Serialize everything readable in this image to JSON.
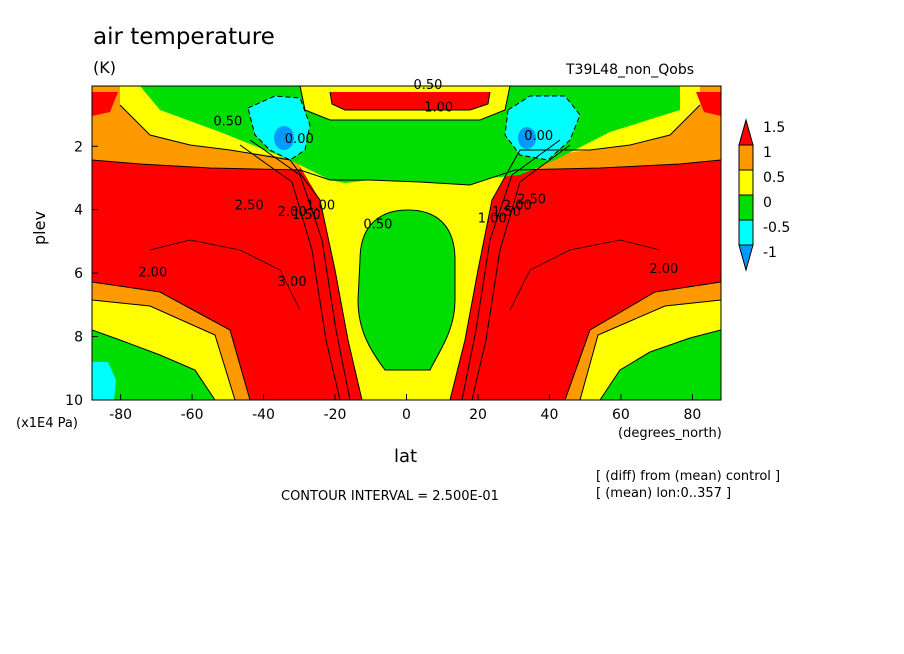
{
  "header": {
    "title": "air temperature",
    "units": "(K)",
    "run": "T39L48_non_Qobs"
  },
  "footer": {
    "contour_interval": "CONTOUR INTERVAL = 2.500E-01",
    "note_diff": "[ (diff) from (mean) control ]",
    "note_mean": "[ (mean) lon:0..357 ]"
  },
  "chart_data": {
    "type": "contour",
    "xlabel": "lat",
    "xunit": "(degrees_north)",
    "ylabel": "plev",
    "yunit": "(x1E4 Pa)",
    "xlim": [
      -88,
      88
    ],
    "ylim": [
      10,
      0.1
    ],
    "x_ticks": [
      -80,
      -60,
      -40,
      -20,
      0,
      20,
      40,
      60,
      80
    ],
    "y_ticks": [
      2,
      4,
      6,
      8,
      10
    ],
    "legend": {
      "placement": "right",
      "levels": [
        1.5,
        1,
        0.5,
        0,
        -0.5,
        -1
      ],
      "colors": [
        "#ff0000",
        "#ff9900",
        "#ffff00",
        "#00dd00",
        "#00ffff",
        "#0099ff"
      ]
    },
    "contour_labels": [
      {
        "text": "0.50",
        "lat": 6,
        "plev": 0.2
      },
      {
        "text": "1.00",
        "lat": 9,
        "plev": 0.9
      },
      {
        "text": "0.50",
        "lat": -50,
        "plev": 1.35
      },
      {
        "text": "0.00",
        "lat": -30,
        "plev": 1.9
      },
      {
        "text": "0.00",
        "lat": 37,
        "plev": 1.8
      },
      {
        "text": "2.50",
        "lat": -44,
        "plev": 4.0
      },
      {
        "text": "2.00",
        "lat": -32,
        "plev": 4.2
      },
      {
        "text": "1.50",
        "lat": -28,
        "plev": 4.3
      },
      {
        "text": "1.00",
        "lat": -24,
        "plev": 4.0
      },
      {
        "text": "0.50",
        "lat": -8,
        "plev": 4.6
      },
      {
        "text": "1.00",
        "lat": 24,
        "plev": 4.4
      },
      {
        "text": "1.50",
        "lat": 28,
        "plev": 4.2
      },
      {
        "text": "2.00",
        "lat": 31,
        "plev": 4.0
      },
      {
        "text": "2.50",
        "lat": 35,
        "plev": 3.8
      },
      {
        "text": "2.00",
        "lat": -71,
        "plev": 6.1
      },
      {
        "text": "3.00",
        "lat": -32,
        "plev": 6.4
      },
      {
        "text": "2.00",
        "lat": 72,
        "plev": 6.0
      }
    ]
  }
}
